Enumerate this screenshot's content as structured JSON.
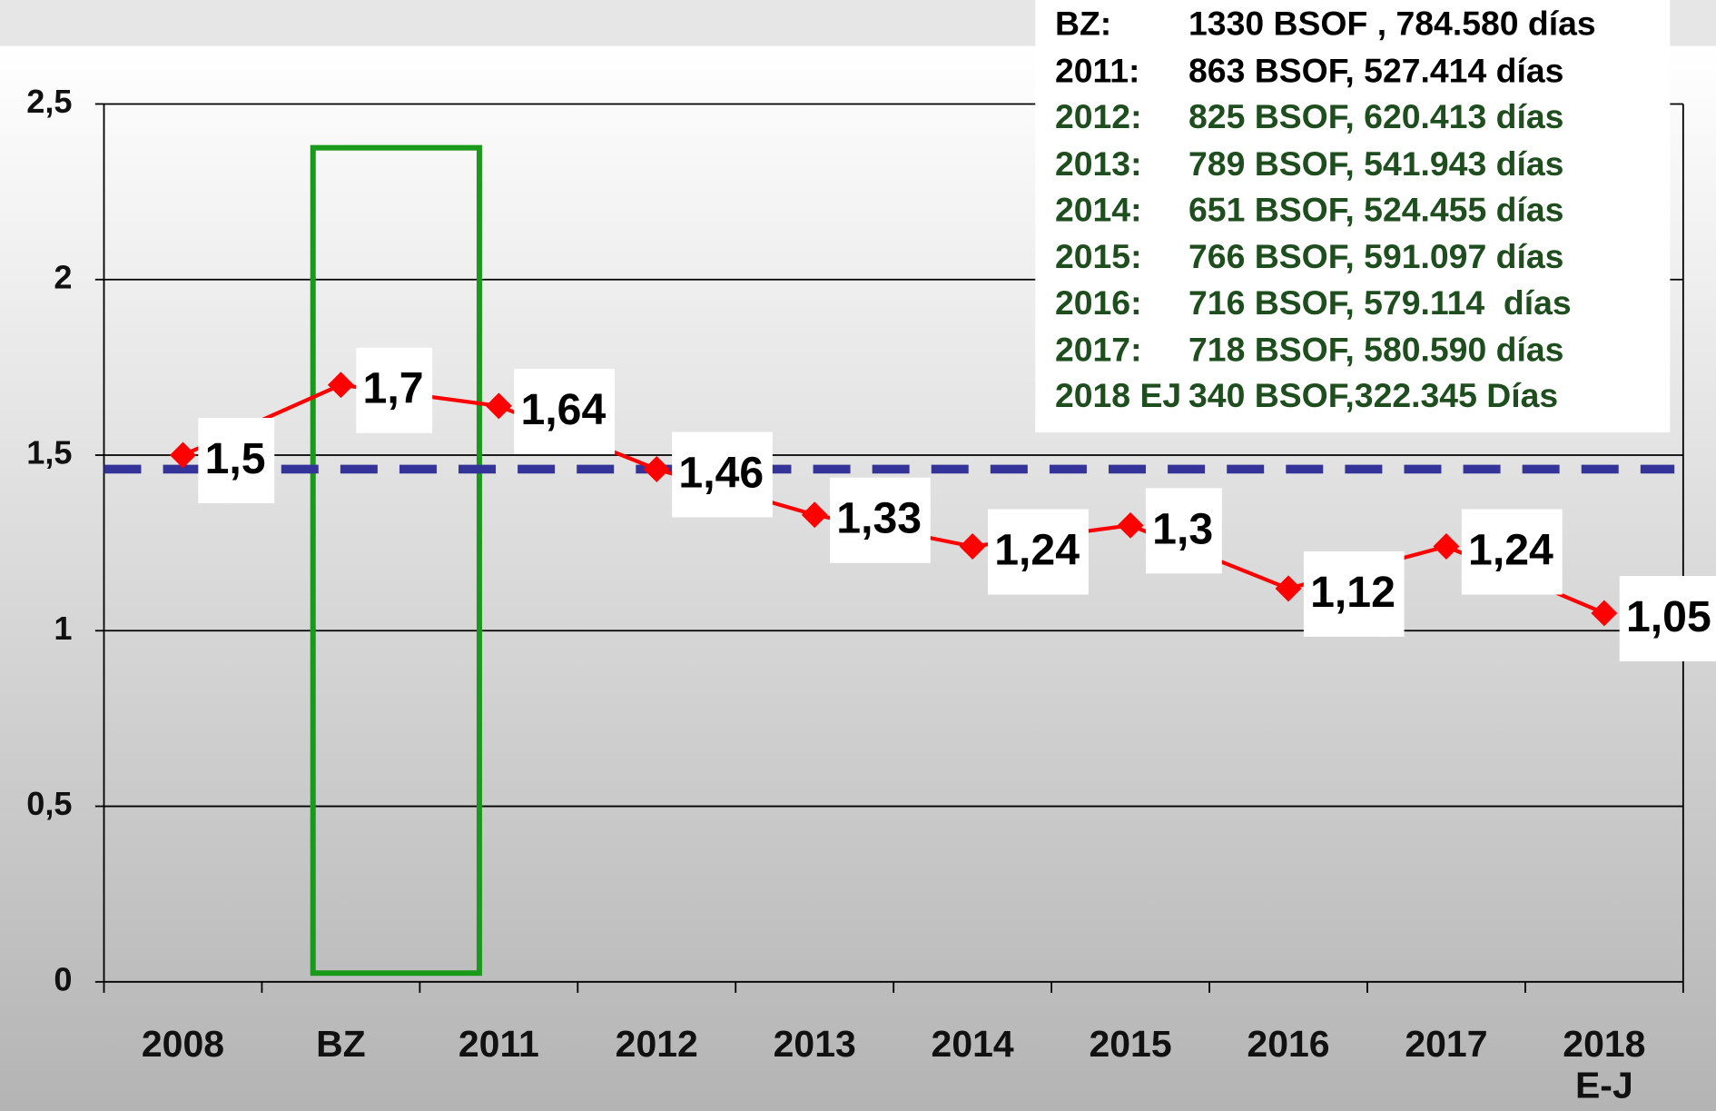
{
  "chart_data": {
    "type": "line",
    "categories": [
      "2008",
      "BZ",
      "2011",
      "2012",
      "2013",
      "2014",
      "2015",
      "2016",
      "2017",
      "2018 E-J"
    ],
    "series": [
      {
        "name": null,
        "color": "#ff0000",
        "values": [
          1.5,
          1.7,
          1.64,
          1.46,
          1.33,
          1.24,
          1.3,
          1.12,
          1.24,
          1.05
        ],
        "value_labels": [
          "1,5",
          "1,7",
          "1,64",
          "1,46",
          "1,33",
          "1,24",
          "1,3",
          "1,12",
          "1,24",
          "1,05"
        ]
      }
    ],
    "ylim": [
      0,
      2.5
    ],
    "yticks": [
      0,
      {
        "value": 0.5,
        "label": "0,5"
      },
      1,
      {
        "value": 1.5,
        "label": "1,5"
      },
      2,
      {
        "value": 2.5,
        "label": "2,5"
      }
    ],
    "grid": true,
    "reference_line": {
      "value": 1.46,
      "color": "#333399"
    },
    "info_box": [
      {
        "label": "BZ:",
        "text": "1330 BSOF , 784.580 días",
        "color": "#000000"
      },
      {
        "label": "2011:",
        "text": "863 BSOF, 527.414 días",
        "color": "#000000"
      },
      {
        "label": "2012:",
        "text": "825 BSOF, 620.413 días",
        "color": "#1e4d1e"
      },
      {
        "label": "2013:",
        "text": "789 BSOF, 541.943 días",
        "color": "#1e4d1e"
      },
      {
        "label": "2014:",
        "text": "651 BSOF, 524.455 días",
        "color": "#1e4d1e"
      },
      {
        "label": "2015:",
        "text": "766 BSOF, 591.097 días",
        "color": "#1e4d1e"
      },
      {
        "label": "2016:",
        "text": "716 BSOF, 579.114  días",
        "color": "#1e4d1e"
      },
      {
        "label": "2017:",
        "text": "718 BSOF, 580.590 días",
        "color": "#1e4d1e"
      },
      {
        "label": "2018 EJ",
        "text": "340 BSOF,322.345 Días",
        "color": "#1e4d1e"
      }
    ]
  }
}
